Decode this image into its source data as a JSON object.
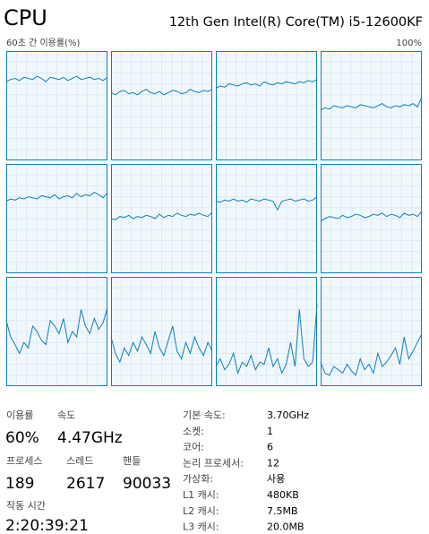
{
  "header": {
    "title": "CPU",
    "processor": "12th Gen Intel(R) Core(TM) i5-12600KF"
  },
  "graph": {
    "type": "line",
    "x_label": "60초 간 이용률(%)",
    "ylim": [
      0,
      100
    ],
    "ytick": {
      "value": 100,
      "label": "100%"
    },
    "color": "#117dbb",
    "series": [
      {
        "values": [
          72,
          74,
          75,
          73,
          76,
          75,
          74,
          77,
          75,
          72,
          76,
          75,
          74,
          76,
          73,
          75,
          77,
          74,
          75,
          76,
          74,
          75,
          73,
          76
        ]
      },
      {
        "values": [
          62,
          60,
          63,
          64,
          61,
          62,
          60,
          63,
          65,
          62,
          61,
          63,
          60,
          62,
          64,
          63,
          61,
          62,
          65,
          63,
          62,
          64,
          63,
          65
        ]
      },
      {
        "values": [
          66,
          68,
          67,
          70,
          69,
          68,
          70,
          71,
          69,
          70,
          68,
          72,
          70,
          69,
          71,
          70,
          72,
          71,
          70,
          72,
          71,
          73,
          72,
          74
        ]
      },
      {
        "values": [
          46,
          48,
          47,
          50,
          49,
          48,
          50,
          49,
          48,
          51,
          50,
          49,
          48,
          50,
          52,
          49,
          48,
          50,
          49,
          51,
          50,
          52,
          49,
          58
        ]
      },
      {
        "values": [
          66,
          68,
          67,
          69,
          68,
          70,
          69,
          68,
          71,
          70,
          69,
          72,
          68,
          70,
          71,
          69,
          73,
          70,
          72,
          71,
          74,
          72,
          69,
          74
        ]
      },
      {
        "values": [
          50,
          49,
          52,
          51,
          53,
          50,
          52,
          51,
          53,
          52,
          50,
          54,
          51,
          53,
          52,
          55,
          53,
          52,
          54,
          53,
          55,
          53,
          52,
          56
        ]
      },
      {
        "values": [
          66,
          65,
          67,
          66,
          68,
          66,
          67,
          65,
          68,
          67,
          66,
          68,
          67,
          66,
          58,
          66,
          67,
          68,
          66,
          67,
          68,
          66,
          67,
          70
        ]
      },
      {
        "values": [
          48,
          50,
          52,
          51,
          50,
          53,
          51,
          52,
          54,
          53,
          51,
          52,
          54,
          53,
          55,
          52,
          54,
          53,
          51,
          55,
          53,
          54,
          52,
          57
        ]
      },
      {
        "values": [
          60,
          45,
          38,
          30,
          40,
          35,
          55,
          50,
          42,
          38,
          60,
          55,
          48,
          62,
          40,
          50,
          45,
          70,
          55,
          48,
          62,
          52,
          58,
          72
        ]
      },
      {
        "values": [
          45,
          30,
          22,
          35,
          28,
          40,
          32,
          45,
          38,
          30,
          50,
          35,
          28,
          42,
          55,
          32,
          25,
          40,
          30,
          45,
          35,
          28,
          40,
          32
        ]
      },
      {
        "values": [
          18,
          25,
          15,
          20,
          30,
          12,
          22,
          18,
          28,
          15,
          22,
          20,
          35,
          18,
          25,
          12,
          20,
          40,
          18,
          70,
          25,
          18,
          22,
          75
        ]
      },
      {
        "values": [
          22,
          12,
          10,
          18,
          15,
          12,
          20,
          14,
          10,
          25,
          15,
          20,
          12,
          30,
          18,
          22,
          28,
          35,
          20,
          45,
          25,
          32,
          40,
          48
        ]
      }
    ]
  },
  "stats": {
    "utilization": {
      "label": "이용률",
      "value": "60%"
    },
    "speed": {
      "label": "속도",
      "value": "4.47GHz"
    },
    "processes": {
      "label": "프로세스",
      "value": "189"
    },
    "threads": {
      "label": "스레드",
      "value": "2617"
    },
    "handles": {
      "label": "핸들",
      "value": "90033"
    },
    "uptime": {
      "label": "작동 시간",
      "value": "2:20:39:21"
    }
  },
  "details": [
    [
      "기본 속도:",
      "3.70GHz"
    ],
    [
      "소켓:",
      "1"
    ],
    [
      "코어:",
      "6"
    ],
    [
      "논리 프로세서:",
      "12"
    ],
    [
      "가상화:",
      "사용"
    ],
    [
      "L1 캐시:",
      "480KB"
    ],
    [
      "L2 캐시:",
      "7.5MB"
    ],
    [
      "L3 캐시:",
      "20.0MB"
    ]
  ]
}
